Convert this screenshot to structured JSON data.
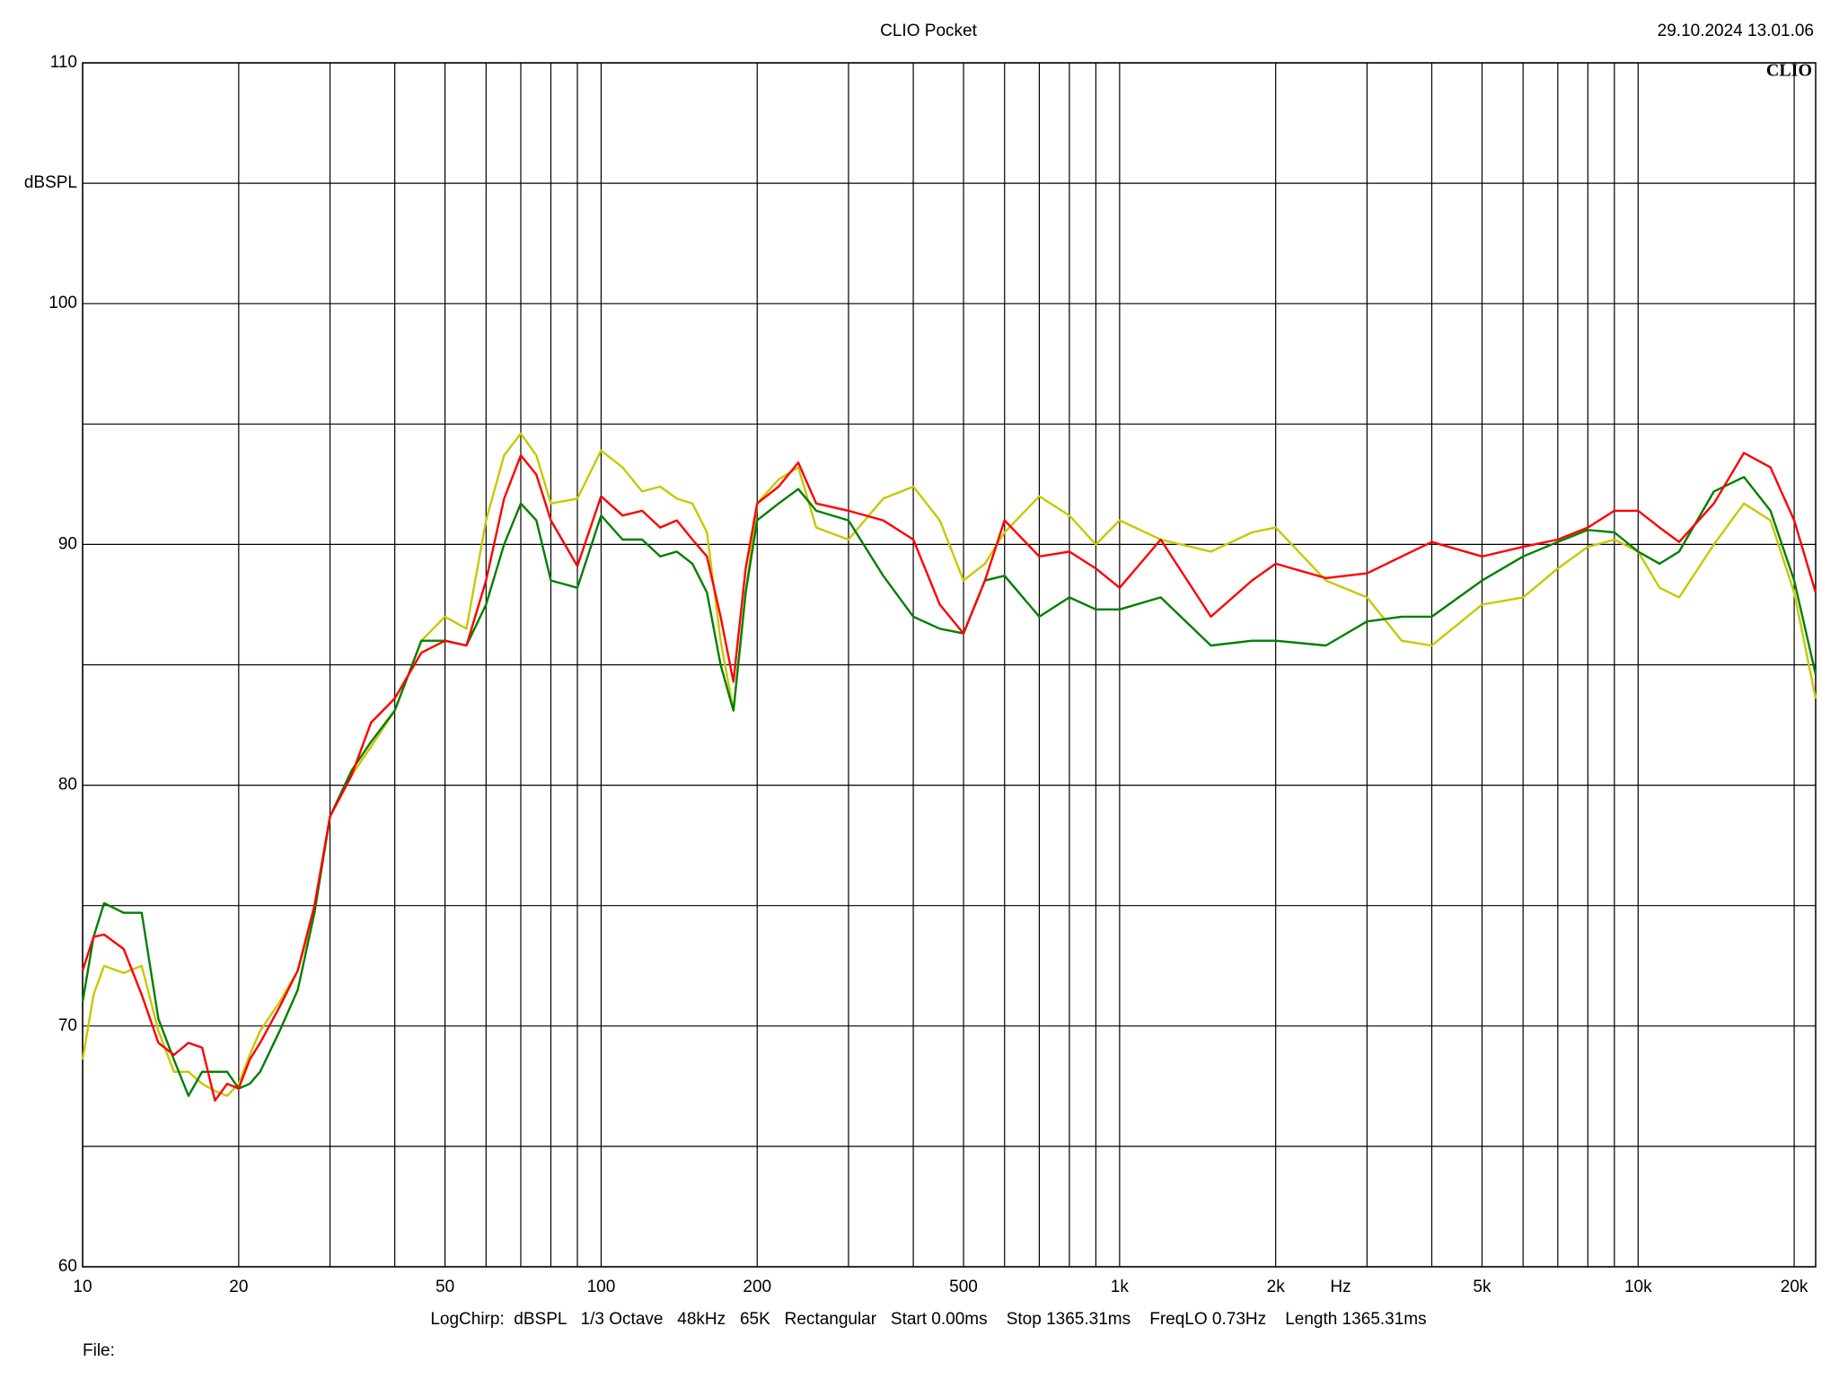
{
  "chart_data": {
    "type": "line",
    "title": "CLIO Pocket",
    "timestamp": "29.10.2024 13.01.06",
    "watermark": "CLIO",
    "y_unit": "dBSPL",
    "x_unit": "Hz",
    "footer": "LogChirp:  dBSPL   1/3 Octave   48kHz   65K   Rectangular   Start 0.00ms    Stop 1365.31ms    FreqLO 0.73Hz    Length 1365.31ms",
    "file_label": "File:",
    "xscale": "log",
    "grid": true,
    "xlim": [
      10,
      22000
    ],
    "ylim": [
      60,
      110
    ],
    "xticks": [
      10,
      20,
      50,
      100,
      200,
      500,
      {
        "value": 1000,
        "label": "1k"
      },
      {
        "value": 2000,
        "label": "2k"
      },
      {
        "value": 5000,
        "label": "5k"
      },
      {
        "value": 10000,
        "label": "10k"
      },
      {
        "value": 20000,
        "label": "20k"
      }
    ],
    "xminor": [
      30,
      40,
      60,
      70,
      80,
      90,
      300,
      400,
      600,
      700,
      800,
      900,
      3000,
      4000,
      6000,
      7000,
      8000,
      9000
    ],
    "yticks": [
      60,
      70,
      80,
      90,
      100,
      110
    ],
    "yminor": [
      65,
      75,
      85,
      95,
      105
    ],
    "x": [
      10,
      10.5,
      11,
      12,
      13,
      14,
      15,
      16,
      17,
      18,
      19,
      20,
      21,
      22,
      24,
      26,
      28,
      30,
      33,
      36,
      40,
      45,
      50,
      55,
      60,
      65,
      70,
      75,
      80,
      90,
      100,
      110,
      120,
      130,
      140,
      150,
      160,
      170,
      180,
      190,
      200,
      220,
      240,
      260,
      300,
      350,
      400,
      450,
      500,
      550,
      600,
      700,
      800,
      900,
      1000,
      1200,
      1500,
      1800,
      2000,
      2500,
      3000,
      3500,
      4000,
      5000,
      6000,
      7000,
      8000,
      9000,
      10000,
      11000,
      12000,
      14000,
      16000,
      18000,
      20000,
      22000
    ],
    "series": [
      {
        "color": "#c8c800",
        "values": [
          68.6,
          71.3,
          72.5,
          72.2,
          72.5,
          69.8,
          68.1,
          68.1,
          67.6,
          67.3,
          67.1,
          67.6,
          68.8,
          69.8,
          71,
          72.3,
          74.7,
          78.7,
          80.4,
          81.6,
          83.1,
          86,
          87,
          86.5,
          91,
          93.7,
          94.6,
          93.7,
          91.7,
          91.9,
          93.9,
          93.2,
          92.2,
          92.4,
          91.9,
          91.7,
          90.5,
          86,
          83.1,
          88,
          91.7,
          92.7,
          93.2,
          90.7,
          90.2,
          91.9,
          92.4,
          91,
          88.5,
          89.2,
          90.5,
          92,
          91.2,
          90,
          91,
          90.2,
          89.7,
          90.5,
          90.7,
          88.5,
          87.8,
          86,
          85.8,
          87.5,
          87.8,
          89,
          89.9,
          90.2,
          89.7,
          88.2,
          87.8,
          90,
          91.7,
          91,
          88,
          83.6
        ]
      },
      {
        "color": "#008000",
        "values": [
          71,
          73.7,
          75.1,
          74.7,
          74.7,
          70.3,
          68.6,
          67.1,
          68.1,
          68.1,
          68.1,
          67.4,
          67.6,
          68.1,
          69.8,
          71.5,
          74.7,
          78.7,
          80.6,
          81.8,
          83.1,
          86,
          86,
          85.8,
          87.5,
          90,
          91.7,
          91,
          88.5,
          88.2,
          91.2,
          90.2,
          90.2,
          89.5,
          89.7,
          89.2,
          88,
          85,
          83.1,
          88,
          91,
          91.7,
          92.3,
          91.4,
          91,
          88.7,
          87,
          86.5,
          86.3,
          88.5,
          88.7,
          87,
          87.8,
          87.3,
          87.3,
          87.8,
          85.8,
          86,
          86,
          85.8,
          86.8,
          87,
          87,
          88.5,
          89.5,
          90.1,
          90.6,
          90.5,
          89.7,
          89.2,
          89.7,
          92.2,
          92.8,
          91.4,
          88.5,
          84.6
        ]
      },
      {
        "color": "#ff0000",
        "values": [
          72.3,
          73.7,
          73.8,
          73.2,
          71.3,
          69.3,
          68.8,
          69.3,
          69.1,
          66.9,
          67.6,
          67.4,
          68.6,
          69.3,
          70.8,
          72.3,
          75,
          78.7,
          80.4,
          82.6,
          83.6,
          85.5,
          86,
          85.8,
          88.5,
          91.9,
          93.7,
          92.9,
          91,
          89.1,
          92,
          91.2,
          91.4,
          90.7,
          91,
          90.2,
          89.5,
          87,
          84.3,
          89,
          91.7,
          92.4,
          93.4,
          91.7,
          91.4,
          91,
          90.2,
          87.5,
          86.3,
          88.5,
          91,
          89.5,
          89.7,
          89,
          88.2,
          90.2,
          87,
          88.5,
          89.2,
          88.6,
          88.8,
          89.5,
          90.1,
          89.5,
          89.9,
          90.2,
          90.7,
          91.4,
          91.4,
          90.7,
          90.1,
          91.7,
          93.8,
          93.2,
          91,
          88
        ]
      }
    ]
  }
}
